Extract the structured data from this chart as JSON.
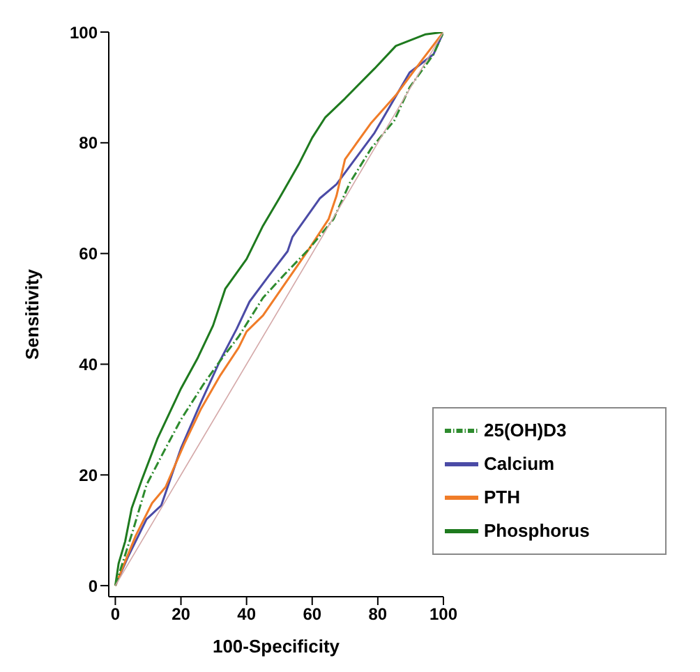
{
  "chart_data": {
    "type": "line",
    "xlabel": "100-Specificity",
    "ylabel": "Sensitivity",
    "xlim": [
      -2,
      100
    ],
    "ylim": [
      -2,
      100
    ],
    "xticks": [
      0,
      20,
      40,
      60,
      80,
      100
    ],
    "yticks": [
      0,
      20,
      40,
      60,
      80,
      100
    ],
    "grid": false,
    "legend": "bottom right",
    "marker": "none",
    "series": [
      {
        "name": "Calcium",
        "color": "#4b4ba6",
        "line_style": "solid",
        "x": [
          0,
          3.7,
          9.5,
          14,
          20,
          26,
          31.8,
          37,
          40.9,
          46.7,
          52.5,
          54,
          62.4,
          67.4,
          79,
          89.7,
          97,
          100
        ],
        "values": [
          0,
          5,
          12,
          14.5,
          24.8,
          33,
          40.5,
          46.4,
          51.3,
          55.9,
          60.4,
          63,
          70,
          72.5,
          81.8,
          92.7,
          96,
          100
        ]
      },
      {
        "name": "Phosphorus",
        "color": "#1e7a1e",
        "line_style": "solid",
        "x": [
          0,
          1,
          3,
          5,
          8,
          12.8,
          20,
          25,
          29.8,
          33.5,
          40,
          45,
          50,
          55.8,
          60,
          64,
          70,
          79,
          85.5,
          94.6,
          100
        ],
        "values": [
          0,
          4,
          8,
          14,
          19,
          26.5,
          35.6,
          41,
          47,
          53.6,
          59,
          65,
          70,
          76,
          80.9,
          84.6,
          88,
          93.4,
          97.5,
          99.6,
          100
        ]
      },
      {
        "name": "PTH",
        "color": "#f07c28",
        "line_style": "solid",
        "x": [
          0,
          6.2,
          11.2,
          15.3,
          21,
          26,
          32,
          37.6,
          40,
          45,
          59,
          65,
          67.4,
          70,
          73,
          78,
          85.5,
          93.8,
          100
        ],
        "values": [
          0,
          9,
          14.9,
          17.8,
          25.6,
          31.8,
          38,
          43,
          45.9,
          48.8,
          60.8,
          66.2,
          70.4,
          77,
          79.5,
          83.6,
          88.6,
          95.2,
          100
        ]
      },
      {
        "name": "25(OH)D3",
        "color": "#2e8b2e",
        "line_style": "dashed",
        "x": [
          0,
          5.4,
          9.5,
          15.3,
          20,
          26.9,
          31.8,
          37.6,
          45,
          51.7,
          59,
          66.5,
          71.5,
          78,
          85,
          89.7,
          97,
          100
        ],
        "values": [
          0,
          10,
          18.2,
          24.8,
          30,
          36.4,
          40.5,
          45,
          52,
          56.3,
          60.8,
          66.2,
          72.8,
          79,
          84,
          90,
          96,
          100
        ]
      },
      {
        "color": "#d4a8a8",
        "line_style": "solid",
        "x": [
          0,
          100
        ],
        "values": [
          0,
          100
        ]
      }
    ]
  }
}
